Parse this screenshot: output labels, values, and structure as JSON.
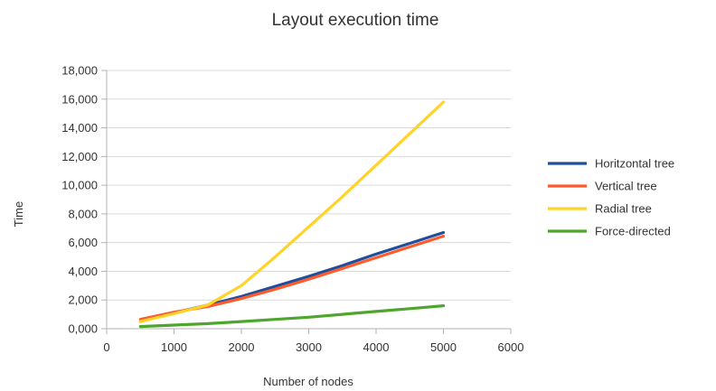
{
  "chart_data": {
    "type": "line",
    "title": "Layout execution time",
    "xlabel": "Number of nodes",
    "ylabel": "Time",
    "xlim": [
      0,
      6000
    ],
    "ylim": [
      0,
      18000
    ],
    "x_ticks": [
      0,
      1000,
      2000,
      3000,
      4000,
      5000,
      6000
    ],
    "x_tick_labels": [
      "0",
      "1000",
      "2000",
      "3000",
      "4000",
      "5000",
      "6000"
    ],
    "y_ticks": [
      0,
      2000,
      4000,
      6000,
      8000,
      10000,
      12000,
      14000,
      16000,
      18000
    ],
    "y_tick_labels": [
      "0,000",
      "2,000",
      "4,000",
      "6,000",
      "8,000",
      "10,000",
      "12,000",
      "14,000",
      "16,000",
      "18,000"
    ],
    "grid": "horizontal",
    "legend_position": "right",
    "x": [
      500,
      1000,
      1500,
      2000,
      2500,
      3000,
      3500,
      4000,
      4500,
      5000
    ],
    "series": [
      {
        "name": "Horitzontal tree",
        "color": "#1f4e9a",
        "values": [
          500,
          1100,
          1650,
          2250,
          2950,
          3650,
          4400,
          5200,
          5950,
          6700
        ]
      },
      {
        "name": "Vertical tree",
        "color": "#ff5a2c",
        "values": [
          650,
          1150,
          1550,
          2100,
          2750,
          3450,
          4200,
          4950,
          5700,
          6450
        ]
      },
      {
        "name": "Radial tree",
        "color": "#ffd32a",
        "values": [
          500,
          1050,
          1650,
          3000,
          5000,
          7100,
          9200,
          11400,
          13600,
          15800
        ]
      },
      {
        "name": "Force-directed",
        "color": "#4ea62c",
        "values": [
          150,
          250,
          350,
          500,
          650,
          800,
          1000,
          1200,
          1400,
          1600
        ]
      }
    ]
  }
}
